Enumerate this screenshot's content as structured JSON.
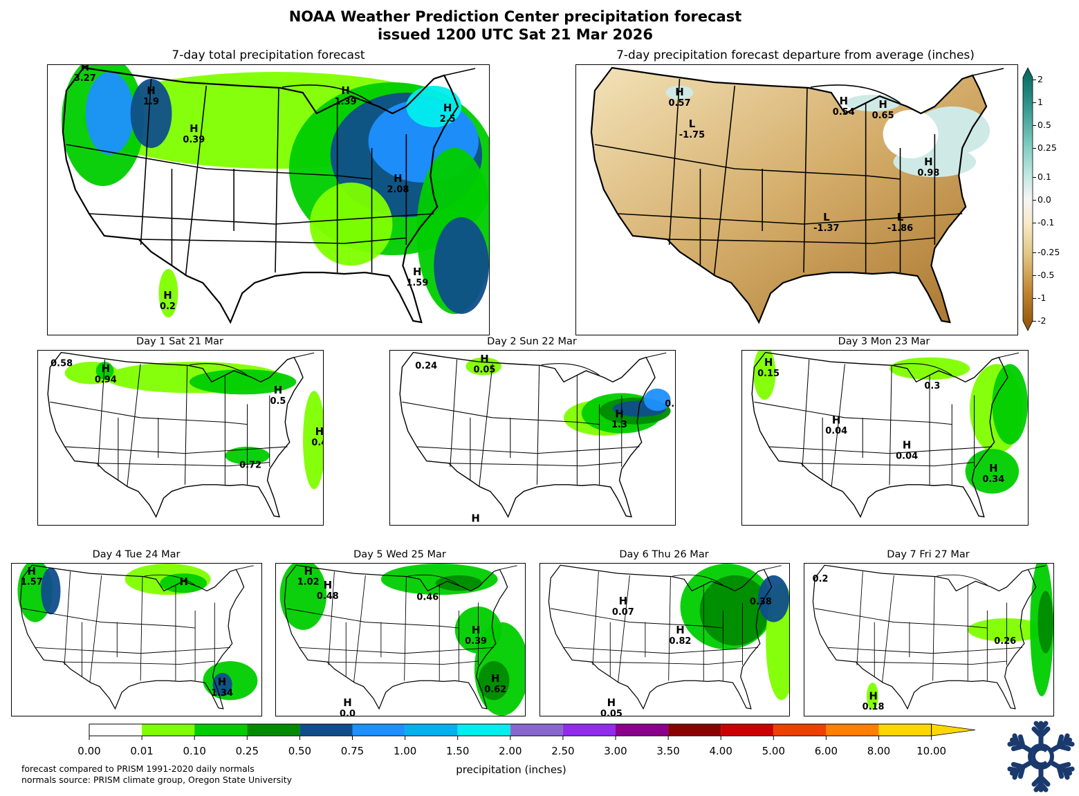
{
  "header": {
    "title_line1": "NOAA Weather Prediction Center precipitation forecast",
    "title_line2": "issued 1200 UTC Sat 21 Mar 2026"
  },
  "panels": [
    {
      "title": "7-day total precipitation forecast",
      "kind": "total",
      "labels": [
        {
          "type": "H",
          "value": "3.27"
        },
        {
          "type": "H",
          "value": "1.9"
        },
        {
          "type": "H",
          "value": "0.39"
        },
        {
          "type": "H",
          "value": "1.39"
        },
        {
          "type": "H",
          "value": "2.5"
        },
        {
          "type": "H",
          "value": "2.08"
        },
        {
          "type": "H",
          "value": "1.59"
        },
        {
          "type": "H",
          "value": "0.2"
        }
      ]
    },
    {
      "title": "7-day precipitation forecast departure from average (inches)",
      "kind": "departure",
      "labels": [
        {
          "type": "H",
          "value": "0.57"
        },
        {
          "type": "L",
          "value": "-1.75"
        },
        {
          "type": "H",
          "value": "0.54"
        },
        {
          "type": "H",
          "value": "0.65"
        },
        {
          "type": "H",
          "value": "0.98"
        },
        {
          "type": "L",
          "value": "-1.37"
        },
        {
          "type": "L",
          "value": "-1.86"
        }
      ]
    },
    {
      "title": "Day 1  Sat 21 Mar",
      "kind": "day",
      "labels": [
        {
          "type": "",
          "value": "0.58"
        },
        {
          "type": "H",
          "value": "0.94"
        },
        {
          "type": "H",
          "value": "0.5"
        },
        {
          "type": "H",
          "value": "0.4"
        },
        {
          "type": "",
          "value": "0.72"
        }
      ]
    },
    {
      "title": "Day 2  Sun 22 Mar",
      "kind": "day",
      "labels": [
        {
          "type": "",
          "value": "0.24"
        },
        {
          "type": "H",
          "value": "0.05"
        },
        {
          "type": "H",
          "value": "1.3"
        },
        {
          "type": "",
          "value": "0."
        },
        {
          "type": "H",
          "value": ""
        }
      ]
    },
    {
      "title": "Day 3  Mon 23 Mar",
      "kind": "day",
      "labels": [
        {
          "type": "H",
          "value": "0.15"
        },
        {
          "type": "",
          "value": "0.3"
        },
        {
          "type": "H",
          "value": "0.04"
        },
        {
          "type": "H",
          "value": "0.04"
        },
        {
          "type": "H",
          "value": "0.34"
        }
      ]
    },
    {
      "title": "Day 4  Tue 24 Mar",
      "kind": "day",
      "labels": [
        {
          "type": "H",
          "value": "1.57"
        },
        {
          "type": "H",
          "value": ""
        },
        {
          "type": "H",
          "value": "1.34"
        }
      ]
    },
    {
      "title": "Day 5  Wed 25 Mar",
      "kind": "day",
      "labels": [
        {
          "type": "H",
          "value": "1.02"
        },
        {
          "type": "H",
          "value": "0.48"
        },
        {
          "type": "",
          "value": "0.46"
        },
        {
          "type": "H",
          "value": "0.39"
        },
        {
          "type": "H",
          "value": "0.62"
        },
        {
          "type": "H",
          "value": "0.0"
        }
      ]
    },
    {
      "title": "Day 6  Thu 26 Mar",
      "kind": "day",
      "labels": [
        {
          "type": "H",
          "value": "0.07"
        },
        {
          "type": "",
          "value": "0.38"
        },
        {
          "type": "H",
          "value": "0.82"
        },
        {
          "type": "H",
          "value": "0.05"
        }
      ]
    },
    {
      "title": "Day 7  Fri 27 Mar",
      "kind": "day",
      "labels": [
        {
          "type": "",
          "value": "0.2"
        },
        {
          "type": "",
          "value": "0.26"
        },
        {
          "type": "H",
          "value": "0.18"
        }
      ]
    }
  ],
  "precip_colorbar": {
    "label": "precipitation (inches)",
    "ticks": [
      "0.00",
      "0.01",
      "0.10",
      "0.25",
      "0.50",
      "0.75",
      "1.00",
      "1.50",
      "2.00",
      "2.50",
      "3.00",
      "3.50",
      "4.00",
      "5.00",
      "6.00",
      "8.00",
      "10.00"
    ],
    "colors": [
      "#ffffff",
      "#7fff00",
      "#00cd00",
      "#008b00",
      "#104e8b",
      "#1e90ff",
      "#00b2ee",
      "#00eeee",
      "#8968cd",
      "#912cee",
      "#8b008b",
      "#8b0000",
      "#cd0000",
      "#ee4000",
      "#ff7f00",
      "#ffd700"
    ],
    "extend": "max"
  },
  "departure_colorbar": {
    "ticks": [
      "2",
      "1",
      "0.5",
      "0.25",
      "0.1",
      "0.0",
      "-0.1",
      "-0.25",
      "-0.5",
      "-1",
      "-2"
    ],
    "colors": {
      "wet": "#01665e",
      "neutral": "#f5f5f5",
      "dry": "#8c510a"
    },
    "extend": "both"
  },
  "footnote": {
    "line1": "forecast compared to PRISM 1991-2020 daily normals",
    "line2": "normals source: PRISM climate group, Oregon State University"
  },
  "logo": {
    "name": "snowflake-logo",
    "color": "#1a3a6e"
  }
}
